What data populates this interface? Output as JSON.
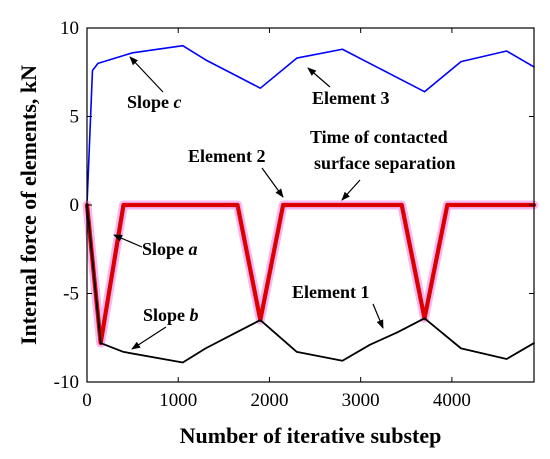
{
  "chart_data": {
    "type": "line",
    "title": "",
    "xlabel": "Number of iterative substep",
    "ylabel": "Internal force of elements, kN",
    "xlim": [
      0,
      4900
    ],
    "ylim": [
      -10,
      10
    ],
    "xticks": [
      0,
      1000,
      2000,
      3000,
      4000
    ],
    "yticks": [
      -10,
      -5,
      0,
      5,
      10
    ],
    "grid": false,
    "series": [
      {
        "name": "Element 3",
        "color": "#0000ff",
        "x": [
          0,
          60,
          120,
          500,
          1050,
          1300,
          1600,
          1900,
          2300,
          2800,
          3100,
          3400,
          3700,
          4100,
          4600,
          4900
        ],
        "y": [
          0,
          7.6,
          8.0,
          8.6,
          9.0,
          8.2,
          7.4,
          6.6,
          8.3,
          8.8,
          8.0,
          7.2,
          6.4,
          8.1,
          8.7,
          7.8
        ]
      },
      {
        "name": "Element 2",
        "color": "#dd0000",
        "x": [
          0,
          150,
          400,
          1650,
          1900,
          2150,
          3450,
          3700,
          3950,
          4900
        ],
        "y": [
          0,
          -7.8,
          0,
          0,
          -6.5,
          0,
          0,
          -6.4,
          0,
          0
        ]
      },
      {
        "name": "Element 1",
        "color": "#000000",
        "x": [
          0,
          150,
          400,
          1050,
          1300,
          1600,
          1900,
          2300,
          2800,
          3100,
          3400,
          3700,
          4100,
          4600,
          4900
        ],
        "y": [
          0,
          -7.8,
          -8.3,
          -8.9,
          -8.1,
          -7.3,
          -6.5,
          -8.3,
          -8.8,
          -7.9,
          -7.2,
          -6.4,
          -8.1,
          -8.7,
          -7.8
        ]
      }
    ],
    "annotations": [
      {
        "text": "Element 3"
      },
      {
        "text": "Element 2"
      },
      {
        "text": "Element 1"
      },
      {
        "text": "Time of contacted"
      },
      {
        "text": "surface separation"
      },
      {
        "slope_word": "Slope",
        "letter": "a"
      },
      {
        "slope_word": "Slope",
        "letter": "b"
      },
      {
        "slope_word": "Slope",
        "letter": "c"
      }
    ]
  }
}
